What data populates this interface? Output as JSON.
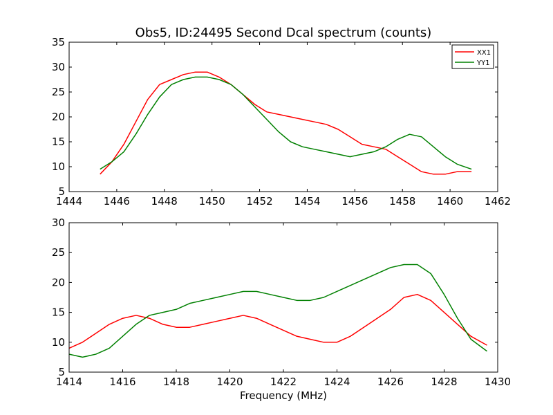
{
  "chart_data": [
    {
      "type": "line",
      "title": "Obs5, ID:24495 Second Dcal spectrum (counts)",
      "xlabel": "",
      "ylabel": "",
      "xlim": [
        1444,
        1462
      ],
      "ylim": [
        5,
        35
      ],
      "xticks": [
        1444,
        1446,
        1448,
        1450,
        1452,
        1454,
        1456,
        1458,
        1460,
        1462
      ],
      "yticks": [
        5,
        10,
        15,
        20,
        25,
        30,
        35
      ],
      "legend": {
        "placement": "top-right",
        "entries": [
          "XX1",
          "YY1"
        ]
      },
      "series": [
        {
          "name": "XX1",
          "color": "#ff0000",
          "x": [
            1445.3,
            1445.8,
            1446.3,
            1446.8,
            1447.3,
            1447.8,
            1448.3,
            1448.8,
            1449.3,
            1449.8,
            1450.3,
            1450.8,
            1451.3,
            1451.8,
            1452.3,
            1452.8,
            1453.3,
            1453.8,
            1454.3,
            1454.8,
            1455.3,
            1455.8,
            1456.3,
            1456.8,
            1457.3,
            1457.8,
            1458.3,
            1458.8,
            1459.3,
            1459.8,
            1460.3,
            1460.9
          ],
          "values": [
            8.5,
            11,
            14.5,
            19,
            23.5,
            26.5,
            27.5,
            28.5,
            29,
            29,
            28,
            26.5,
            24.5,
            22.5,
            21,
            20.5,
            20,
            19.5,
            19,
            18.5,
            17.5,
            16,
            14.5,
            14,
            13.5,
            12,
            10.5,
            9,
            8.5,
            8.5,
            9,
            9
          ]
        },
        {
          "name": "YY1",
          "color": "#008000",
          "x": [
            1445.3,
            1445.8,
            1446.3,
            1446.8,
            1447.3,
            1447.8,
            1448.3,
            1448.8,
            1449.3,
            1449.8,
            1450.3,
            1450.8,
            1451.3,
            1451.8,
            1452.3,
            1452.8,
            1453.3,
            1453.8,
            1454.3,
            1454.8,
            1455.3,
            1455.8,
            1456.3,
            1456.8,
            1457.3,
            1457.8,
            1458.3,
            1458.8,
            1459.3,
            1459.8,
            1460.3,
            1460.9
          ],
          "values": [
            9.5,
            11,
            13,
            16.5,
            20.5,
            24,
            26.5,
            27.5,
            28,
            28,
            27.5,
            26.5,
            24.5,
            22,
            19.5,
            17,
            15,
            14,
            13.5,
            13,
            12.5,
            12,
            12.5,
            13,
            14,
            15.5,
            16.5,
            16,
            14,
            12,
            10.5,
            9.5
          ]
        }
      ]
    },
    {
      "type": "line",
      "title": "",
      "xlabel": "Frequency (MHz)",
      "ylabel": "",
      "xlim": [
        1414,
        1430
      ],
      "ylim": [
        5,
        30
      ],
      "xticks": [
        1414,
        1416,
        1418,
        1420,
        1422,
        1424,
        1426,
        1428,
        1430
      ],
      "yticks": [
        5,
        10,
        15,
        20,
        25,
        30
      ],
      "series": [
        {
          "name": "XX1",
          "color": "#ff0000",
          "x": [
            1414.0,
            1414.5,
            1415.0,
            1415.5,
            1416.0,
            1416.5,
            1417.0,
            1417.5,
            1418.0,
            1418.5,
            1419.0,
            1419.5,
            1420.0,
            1420.5,
            1421.0,
            1421.5,
            1422.0,
            1422.5,
            1423.0,
            1423.5,
            1424.0,
            1424.5,
            1425.0,
            1425.5,
            1426.0,
            1426.5,
            1427.0,
            1427.5,
            1428.0,
            1428.5,
            1429.0,
            1429.6
          ],
          "values": [
            9,
            10,
            11.5,
            13,
            14,
            14.5,
            14,
            13,
            12.5,
            12.5,
            13,
            13.5,
            14,
            14.5,
            14,
            13,
            12,
            11,
            10.5,
            10,
            10,
            11,
            12.5,
            14,
            15.5,
            17.5,
            18,
            17,
            15,
            13,
            11,
            9.5
          ]
        },
        {
          "name": "YY1",
          "color": "#008000",
          "x": [
            1414.0,
            1414.5,
            1415.0,
            1415.5,
            1416.0,
            1416.5,
            1417.0,
            1417.5,
            1418.0,
            1418.5,
            1419.0,
            1419.5,
            1420.0,
            1420.5,
            1421.0,
            1421.5,
            1422.0,
            1422.5,
            1423.0,
            1423.5,
            1424.0,
            1424.5,
            1425.0,
            1425.5,
            1426.0,
            1426.5,
            1427.0,
            1427.5,
            1428.0,
            1428.5,
            1429.0,
            1429.6
          ],
          "values": [
            8,
            7.5,
            8,
            9,
            11,
            13,
            14.5,
            15,
            15.5,
            16.5,
            17,
            17.5,
            18,
            18.5,
            18.5,
            18,
            17.5,
            17,
            17,
            17.5,
            18.5,
            19.5,
            20.5,
            21.5,
            22.5,
            23,
            23,
            21.5,
            18,
            14,
            10.5,
            8.5
          ]
        }
      ]
    }
  ]
}
